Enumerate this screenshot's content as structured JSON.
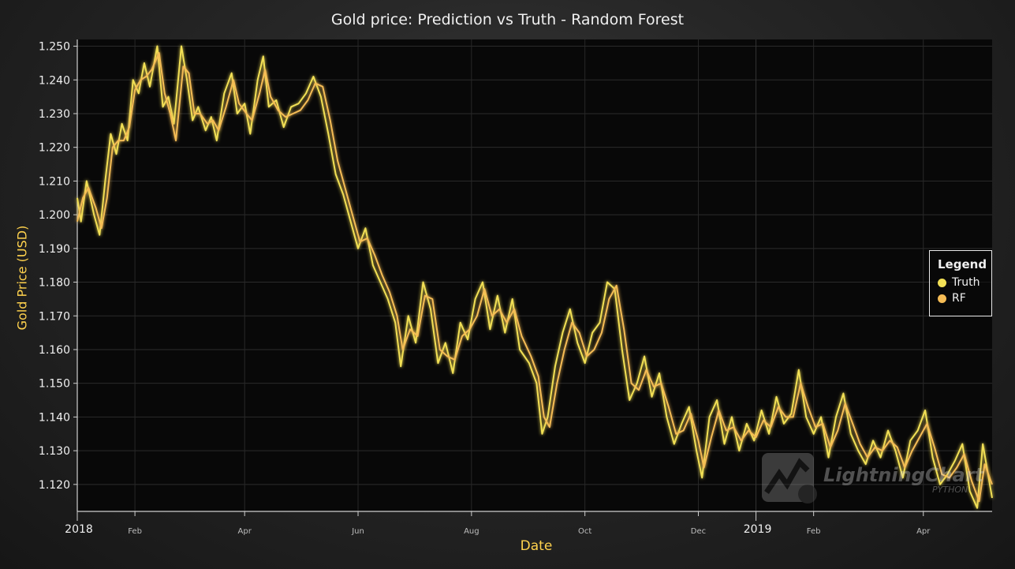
{
  "chart_data": {
    "type": "line",
    "title": "Gold price: Prediction vs Truth - Random Forest",
    "xlabel": "Date",
    "ylabel": "Gold Price (USD)",
    "ylim": [
      1.112,
      1.252
    ],
    "xlim": [
      "2018-01-01",
      "2019-05-08"
    ],
    "grid": true,
    "legend": {
      "title": "Legend",
      "position": "right"
    },
    "y_ticks": [
      "1.120",
      "1.130",
      "1.140",
      "1.150",
      "1.160",
      "1.170",
      "1.180",
      "1.190",
      "1.200",
      "1.210",
      "1.220",
      "1.230",
      "1.240",
      "1.250"
    ],
    "x_ticks": [
      {
        "date": "2018-01-01",
        "label": "2018",
        "major": true
      },
      {
        "date": "2018-02-01",
        "label": "Feb",
        "major": false
      },
      {
        "date": "2018-04-01",
        "label": "Apr",
        "major": false
      },
      {
        "date": "2018-06-01",
        "label": "Jun",
        "major": false
      },
      {
        "date": "2018-08-01",
        "label": "Aug",
        "major": false
      },
      {
        "date": "2018-10-01",
        "label": "Oct",
        "major": false
      },
      {
        "date": "2018-12-01",
        "label": "Dec",
        "major": false
      },
      {
        "date": "2019-01-01",
        "label": "2019",
        "major": true
      },
      {
        "date": "2019-02-01",
        "label": "Feb",
        "major": false
      },
      {
        "date": "2019-04-01",
        "label": "Apr",
        "major": false
      }
    ],
    "series": [
      {
        "name": "Truth",
        "color": "#f2e055",
        "points": [
          [
            "2018-01-01",
            1.205
          ],
          [
            "2018-01-03",
            1.198
          ],
          [
            "2018-01-06",
            1.21
          ],
          [
            "2018-01-10",
            1.2
          ],
          [
            "2018-01-13",
            1.194
          ],
          [
            "2018-01-16",
            1.21
          ],
          [
            "2018-01-19",
            1.224
          ],
          [
            "2018-01-22",
            1.218
          ],
          [
            "2018-01-25",
            1.227
          ],
          [
            "2018-01-28",
            1.222
          ],
          [
            "2018-01-31",
            1.24
          ],
          [
            "2018-02-03",
            1.236
          ],
          [
            "2018-02-06",
            1.245
          ],
          [
            "2018-02-09",
            1.238
          ],
          [
            "2018-02-13",
            1.25
          ],
          [
            "2018-02-16",
            1.232
          ],
          [
            "2018-02-19",
            1.235
          ],
          [
            "2018-02-22",
            1.227
          ],
          [
            "2018-02-26",
            1.25
          ],
          [
            "2018-03-01",
            1.24
          ],
          [
            "2018-03-04",
            1.228
          ],
          [
            "2018-03-07",
            1.232
          ],
          [
            "2018-03-11",
            1.225
          ],
          [
            "2018-03-14",
            1.229
          ],
          [
            "2018-03-17",
            1.222
          ],
          [
            "2018-03-21",
            1.236
          ],
          [
            "2018-03-25",
            1.242
          ],
          [
            "2018-03-28",
            1.23
          ],
          [
            "2018-04-01",
            1.233
          ],
          [
            "2018-04-04",
            1.224
          ],
          [
            "2018-04-08",
            1.24
          ],
          [
            "2018-04-11",
            1.247
          ],
          [
            "2018-04-14",
            1.232
          ],
          [
            "2018-04-18",
            1.234
          ],
          [
            "2018-04-22",
            1.226
          ],
          [
            "2018-04-26",
            1.232
          ],
          [
            "2018-04-30",
            1.233
          ],
          [
            "2018-05-04",
            1.236
          ],
          [
            "2018-05-08",
            1.241
          ],
          [
            "2018-05-12",
            1.235
          ],
          [
            "2018-05-16",
            1.224
          ],
          [
            "2018-05-20",
            1.212
          ],
          [
            "2018-05-24",
            1.206
          ],
          [
            "2018-05-28",
            1.198
          ],
          [
            "2018-06-01",
            1.19
          ],
          [
            "2018-06-05",
            1.196
          ],
          [
            "2018-06-09",
            1.185
          ],
          [
            "2018-06-13",
            1.18
          ],
          [
            "2018-06-17",
            1.175
          ],
          [
            "2018-06-21",
            1.168
          ],
          [
            "2018-06-24",
            1.155
          ],
          [
            "2018-06-28",
            1.17
          ],
          [
            "2018-07-02",
            1.162
          ],
          [
            "2018-07-06",
            1.18
          ],
          [
            "2018-07-10",
            1.172
          ],
          [
            "2018-07-14",
            1.156
          ],
          [
            "2018-07-18",
            1.162
          ],
          [
            "2018-07-22",
            1.153
          ],
          [
            "2018-07-26",
            1.168
          ],
          [
            "2018-07-30",
            1.163
          ],
          [
            "2018-08-03",
            1.175
          ],
          [
            "2018-08-07",
            1.18
          ],
          [
            "2018-08-11",
            1.166
          ],
          [
            "2018-08-15",
            1.176
          ],
          [
            "2018-08-19",
            1.165
          ],
          [
            "2018-08-23",
            1.175
          ],
          [
            "2018-08-27",
            1.16
          ],
          [
            "2018-09-01",
            1.156
          ],
          [
            "2018-09-05",
            1.15
          ],
          [
            "2018-09-08",
            1.135
          ],
          [
            "2018-09-11",
            1.14
          ],
          [
            "2018-09-15",
            1.155
          ],
          [
            "2018-09-19",
            1.165
          ],
          [
            "2018-09-23",
            1.172
          ],
          [
            "2018-09-27",
            1.162
          ],
          [
            "2018-10-01",
            1.156
          ],
          [
            "2018-10-05",
            1.165
          ],
          [
            "2018-10-09",
            1.168
          ],
          [
            "2018-10-13",
            1.18
          ],
          [
            "2018-10-17",
            1.178
          ],
          [
            "2018-10-21",
            1.16
          ],
          [
            "2018-10-25",
            1.145
          ],
          [
            "2018-10-29",
            1.15
          ],
          [
            "2018-11-02",
            1.158
          ],
          [
            "2018-11-06",
            1.146
          ],
          [
            "2018-11-10",
            1.153
          ],
          [
            "2018-11-14",
            1.14
          ],
          [
            "2018-11-18",
            1.132
          ],
          [
            "2018-11-22",
            1.138
          ],
          [
            "2018-11-26",
            1.143
          ],
          [
            "2018-11-30",
            1.13
          ],
          [
            "2018-12-03",
            1.122
          ],
          [
            "2018-12-07",
            1.14
          ],
          [
            "2018-12-11",
            1.145
          ],
          [
            "2018-12-15",
            1.132
          ],
          [
            "2018-12-19",
            1.14
          ],
          [
            "2018-12-23",
            1.13
          ],
          [
            "2018-12-27",
            1.138
          ],
          [
            "2018-12-31",
            1.133
          ],
          [
            "2019-01-04",
            1.142
          ],
          [
            "2019-01-08",
            1.135
          ],
          [
            "2019-01-12",
            1.146
          ],
          [
            "2019-01-16",
            1.138
          ],
          [
            "2019-01-20",
            1.141
          ],
          [
            "2019-01-24",
            1.154
          ],
          [
            "2019-01-28",
            1.14
          ],
          [
            "2019-02-01",
            1.135
          ],
          [
            "2019-02-05",
            1.14
          ],
          [
            "2019-02-09",
            1.128
          ],
          [
            "2019-02-13",
            1.14
          ],
          [
            "2019-02-17",
            1.147
          ],
          [
            "2019-02-21",
            1.135
          ],
          [
            "2019-02-25",
            1.13
          ],
          [
            "2019-03-01",
            1.126
          ],
          [
            "2019-03-05",
            1.133
          ],
          [
            "2019-03-09",
            1.128
          ],
          [
            "2019-03-13",
            1.136
          ],
          [
            "2019-03-17",
            1.13
          ],
          [
            "2019-03-21",
            1.122
          ],
          [
            "2019-03-25",
            1.133
          ],
          [
            "2019-03-29",
            1.136
          ],
          [
            "2019-04-02",
            1.142
          ],
          [
            "2019-04-06",
            1.128
          ],
          [
            "2019-04-10",
            1.12
          ],
          [
            "2019-04-14",
            1.123
          ],
          [
            "2019-04-18",
            1.127
          ],
          [
            "2019-04-22",
            1.132
          ],
          [
            "2019-04-26",
            1.118
          ],
          [
            "2019-04-30",
            1.113
          ],
          [
            "2019-05-03",
            1.132
          ],
          [
            "2019-05-08",
            1.116
          ]
        ]
      },
      {
        "name": "RF",
        "color": "#f5bc55",
        "points": [
          [
            "2018-01-01",
            1.198
          ],
          [
            "2018-01-04",
            1.205
          ],
          [
            "2018-01-07",
            1.208
          ],
          [
            "2018-01-11",
            1.202
          ],
          [
            "2018-01-14",
            1.196
          ],
          [
            "2018-01-17",
            1.205
          ],
          [
            "2018-01-20",
            1.22
          ],
          [
            "2018-01-23",
            1.222
          ],
          [
            "2018-01-26",
            1.222
          ],
          [
            "2018-01-29",
            1.226
          ],
          [
            "2018-02-01",
            1.237
          ],
          [
            "2018-02-04",
            1.24
          ],
          [
            "2018-02-07",
            1.241
          ],
          [
            "2018-02-10",
            1.243
          ],
          [
            "2018-02-14",
            1.248
          ],
          [
            "2018-02-17",
            1.236
          ],
          [
            "2018-02-20",
            1.23
          ],
          [
            "2018-02-23",
            1.222
          ],
          [
            "2018-02-27",
            1.244
          ],
          [
            "2018-03-02",
            1.242
          ],
          [
            "2018-03-05",
            1.23
          ],
          [
            "2018-03-08",
            1.23
          ],
          [
            "2018-03-12",
            1.227
          ],
          [
            "2018-03-15",
            1.228
          ],
          [
            "2018-03-18",
            1.225
          ],
          [
            "2018-03-22",
            1.232
          ],
          [
            "2018-03-26",
            1.24
          ],
          [
            "2018-03-29",
            1.233
          ],
          [
            "2018-04-02",
            1.23
          ],
          [
            "2018-04-05",
            1.228
          ],
          [
            "2018-04-09",
            1.236
          ],
          [
            "2018-04-12",
            1.243
          ],
          [
            "2018-04-15",
            1.235
          ],
          [
            "2018-04-19",
            1.231
          ],
          [
            "2018-04-23",
            1.229
          ],
          [
            "2018-04-27",
            1.23
          ],
          [
            "2018-05-01",
            1.231
          ],
          [
            "2018-05-05",
            1.234
          ],
          [
            "2018-05-09",
            1.239
          ],
          [
            "2018-05-13",
            1.238
          ],
          [
            "2018-05-17",
            1.228
          ],
          [
            "2018-05-21",
            1.216
          ],
          [
            "2018-05-25",
            1.208
          ],
          [
            "2018-05-29",
            1.2
          ],
          [
            "2018-06-02",
            1.192
          ],
          [
            "2018-06-06",
            1.193
          ],
          [
            "2018-06-10",
            1.188
          ],
          [
            "2018-06-14",
            1.182
          ],
          [
            "2018-06-18",
            1.177
          ],
          [
            "2018-06-22",
            1.17
          ],
          [
            "2018-06-25",
            1.16
          ],
          [
            "2018-06-29",
            1.166
          ],
          [
            "2018-07-03",
            1.164
          ],
          [
            "2018-07-07",
            1.176
          ],
          [
            "2018-07-11",
            1.175
          ],
          [
            "2018-07-15",
            1.16
          ],
          [
            "2018-07-19",
            1.158
          ],
          [
            "2018-07-23",
            1.157
          ],
          [
            "2018-07-27",
            1.164
          ],
          [
            "2018-07-31",
            1.166
          ],
          [
            "2018-08-04",
            1.17
          ],
          [
            "2018-08-08",
            1.178
          ],
          [
            "2018-08-12",
            1.17
          ],
          [
            "2018-08-16",
            1.172
          ],
          [
            "2018-08-20",
            1.168
          ],
          [
            "2018-08-24",
            1.172
          ],
          [
            "2018-08-28",
            1.164
          ],
          [
            "2018-09-02",
            1.158
          ],
          [
            "2018-09-06",
            1.152
          ],
          [
            "2018-09-09",
            1.14
          ],
          [
            "2018-09-12",
            1.137
          ],
          [
            "2018-09-16",
            1.15
          ],
          [
            "2018-09-20",
            1.16
          ],
          [
            "2018-09-24",
            1.168
          ],
          [
            "2018-09-28",
            1.165
          ],
          [
            "2018-10-02",
            1.158
          ],
          [
            "2018-10-06",
            1.16
          ],
          [
            "2018-10-10",
            1.165
          ],
          [
            "2018-10-14",
            1.175
          ],
          [
            "2018-10-18",
            1.179
          ],
          [
            "2018-10-22",
            1.166
          ],
          [
            "2018-10-26",
            1.15
          ],
          [
            "2018-10-30",
            1.148
          ],
          [
            "2018-11-03",
            1.154
          ],
          [
            "2018-11-07",
            1.149
          ],
          [
            "2018-11-11",
            1.15
          ],
          [
            "2018-11-15",
            1.143
          ],
          [
            "2018-11-19",
            1.135
          ],
          [
            "2018-11-23",
            1.136
          ],
          [
            "2018-11-27",
            1.141
          ],
          [
            "2018-12-01",
            1.133
          ],
          [
            "2018-12-04",
            1.125
          ],
          [
            "2018-12-08",
            1.134
          ],
          [
            "2018-12-12",
            1.142
          ],
          [
            "2018-12-16",
            1.136
          ],
          [
            "2018-12-20",
            1.137
          ],
          [
            "2018-12-24",
            1.133
          ],
          [
            "2018-12-28",
            1.136
          ],
          [
            "2019-01-01",
            1.134
          ],
          [
            "2019-01-05",
            1.139
          ],
          [
            "2019-01-09",
            1.137
          ],
          [
            "2019-01-13",
            1.143
          ],
          [
            "2019-01-17",
            1.14
          ],
          [
            "2019-01-21",
            1.14
          ],
          [
            "2019-01-25",
            1.15
          ],
          [
            "2019-01-29",
            1.143
          ],
          [
            "2019-02-02",
            1.137
          ],
          [
            "2019-02-06",
            1.138
          ],
          [
            "2019-02-10",
            1.131
          ],
          [
            "2019-02-14",
            1.136
          ],
          [
            "2019-02-18",
            1.144
          ],
          [
            "2019-02-22",
            1.138
          ],
          [
            "2019-02-26",
            1.132
          ],
          [
            "2019-03-02",
            1.128
          ],
          [
            "2019-03-06",
            1.131
          ],
          [
            "2019-03-10",
            1.13
          ],
          [
            "2019-03-14",
            1.133
          ],
          [
            "2019-03-18",
            1.131
          ],
          [
            "2019-03-22",
            1.125
          ],
          [
            "2019-03-26",
            1.13
          ],
          [
            "2019-03-30",
            1.134
          ],
          [
            "2019-04-03",
            1.138
          ],
          [
            "2019-04-07",
            1.131
          ],
          [
            "2019-04-11",
            1.123
          ],
          [
            "2019-04-15",
            1.122
          ],
          [
            "2019-04-19",
            1.125
          ],
          [
            "2019-04-23",
            1.129
          ],
          [
            "2019-04-27",
            1.121
          ],
          [
            "2019-05-01",
            1.115
          ],
          [
            "2019-05-04",
            1.126
          ],
          [
            "2019-05-08",
            1.12
          ]
        ]
      }
    ]
  },
  "watermark": {
    "text": "LightningChart",
    "sub": "PYTHON"
  }
}
